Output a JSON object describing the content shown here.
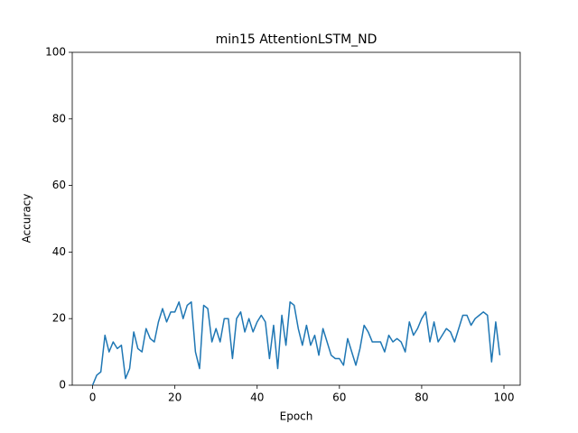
{
  "chart_data": {
    "type": "line",
    "title": "min15 AttentionLSTM_ND",
    "x_label": "Epoch",
    "y_label": "Accuracy",
    "x": [
      0,
      1,
      2,
      3,
      4,
      5,
      6,
      7,
      8,
      9,
      10,
      11,
      12,
      13,
      14,
      15,
      16,
      17,
      18,
      19,
      20,
      21,
      22,
      23,
      24,
      25,
      26,
      27,
      28,
      29,
      30,
      31,
      32,
      33,
      34,
      35,
      36,
      37,
      38,
      39,
      40,
      41,
      42,
      43,
      44,
      45,
      46,
      47,
      48,
      49,
      50,
      51,
      52,
      53,
      54,
      55,
      56,
      57,
      58,
      59,
      60,
      61,
      62,
      63,
      64,
      65,
      66,
      67,
      68,
      69,
      70,
      71,
      72,
      73,
      74,
      75,
      76,
      77,
      78,
      79,
      80,
      81,
      82,
      83,
      84,
      85,
      86,
      87,
      88,
      89,
      90,
      91,
      92,
      93,
      94,
      95,
      96,
      97,
      98,
      99
    ],
    "series": [
      {
        "name": "Accuracy",
        "color": "#1f77b4",
        "values": [
          0,
          3,
          4,
          15,
          10,
          13,
          11,
          12,
          2,
          5,
          16,
          11,
          10,
          17,
          14,
          13,
          19,
          23,
          19,
          22,
          22,
          25,
          20,
          24,
          25,
          10,
          5,
          24,
          23,
          13,
          17,
          13,
          20,
          20,
          8,
          20,
          22,
          16,
          20,
          16,
          19,
          21,
          19,
          8,
          18,
          5,
          21,
          12,
          25,
          24,
          17,
          12,
          18,
          12,
          15,
          9,
          17,
          13,
          9,
          8,
          8,
          6,
          14,
          10,
          6,
          11,
          18,
          16,
          13,
          13,
          13,
          10,
          15,
          13,
          14,
          13,
          10,
          19,
          15,
          17,
          20,
          22,
          13,
          19,
          13,
          15,
          17,
          16,
          13,
          17,
          21,
          21,
          18,
          20,
          21,
          22,
          21,
          7,
          19,
          9
        ]
      }
    ],
    "xlim": [
      -4.95,
      103.95
    ],
    "xticks": [
      0,
      20,
      40,
      60,
      80,
      100
    ],
    "ylim": [
      0,
      100
    ],
    "yticks": [
      0,
      20,
      40,
      60,
      80,
      100
    ]
  }
}
